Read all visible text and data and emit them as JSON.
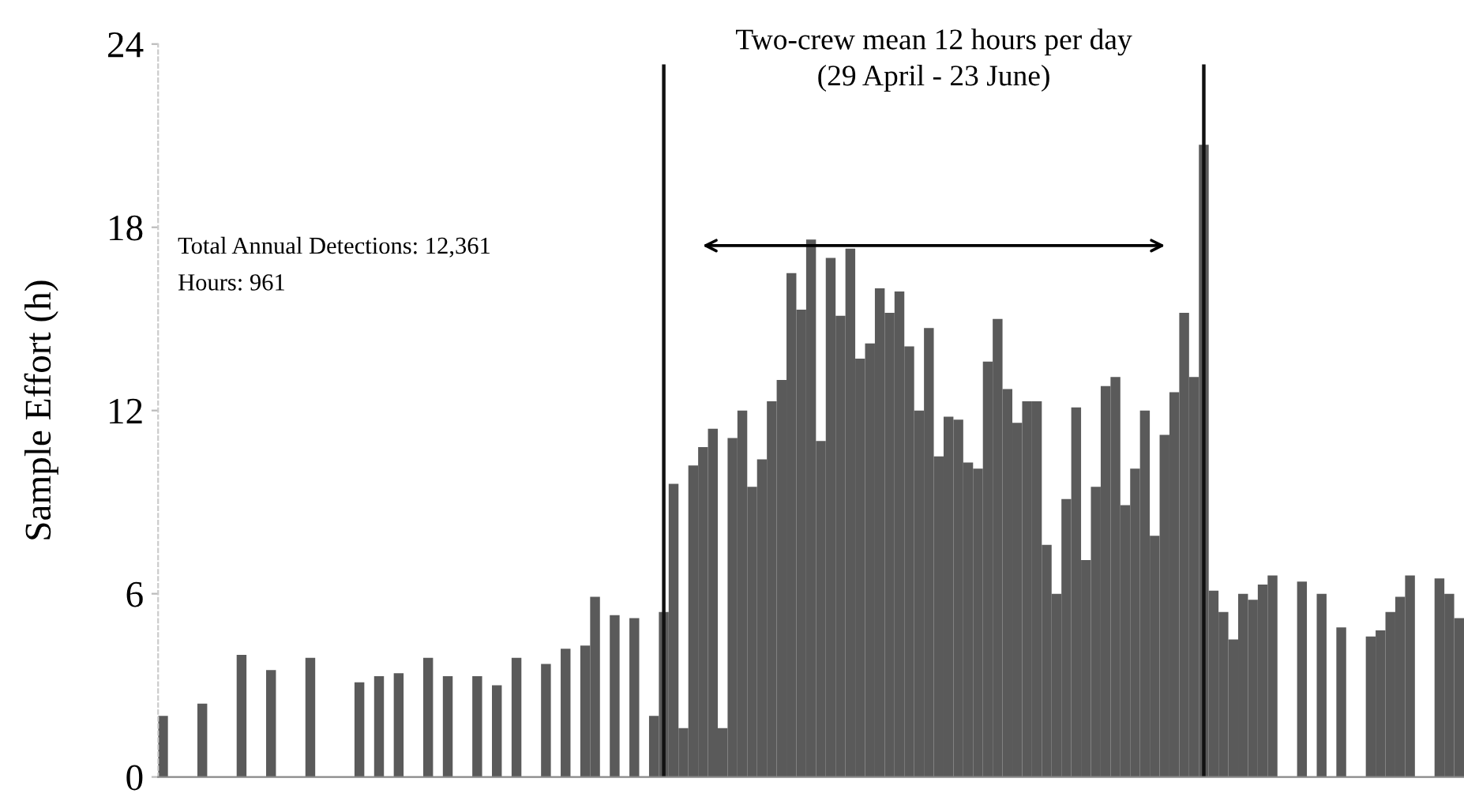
{
  "chart_data": {
    "type": "bar",
    "annotations": [
      "Two-crew mean 12 hours per day\n(29 April - 23 June)",
      "Total Annual Detections: 12,361",
      "Hours: 961"
    ],
    "ylabel": "Sample Effort (h)",
    "categories": [
      null,
      null,
      null,
      null,
      null,
      null,
      null,
      null,
      null,
      null,
      null,
      null,
      null,
      null,
      null,
      null,
      null,
      null,
      null,
      null,
      null,
      null,
      null,
      null,
      null,
      null,
      null,
      null,
      null,
      null,
      null,
      null,
      null,
      null,
      null,
      null,
      null,
      null,
      null,
      null,
      null,
      null,
      null,
      null,
      null,
      null,
      null,
      null,
      null,
      null,
      null,
      null,
      null,
      null,
      null,
      null,
      null,
      null,
      null,
      null,
      null,
      null,
      null,
      null,
      null,
      null,
      null,
      null,
      null,
      null,
      null,
      null,
      null,
      null,
      null,
      null,
      null,
      null,
      null,
      null,
      null,
      null,
      null,
      null,
      null,
      null,
      null,
      null,
      null,
      null,
      null,
      null,
      null,
      null,
      null,
      null,
      null,
      null,
      null,
      null,
      null,
      null,
      null,
      null,
      null,
      null,
      null,
      null,
      null,
      null,
      null,
      null,
      null,
      null,
      null,
      null,
      null,
      null,
      null,
      null,
      null,
      null,
      null,
      null,
      null,
      null,
      null,
      null,
      null,
      null,
      null,
      null,
      null
    ],
    "values": [
      2.0,
      null,
      null,
      null,
      2.4,
      null,
      null,
      null,
      4.0,
      null,
      null,
      3.5,
      null,
      null,
      null,
      3.9,
      null,
      null,
      null,
      null,
      3.1,
      null,
      3.3,
      null,
      3.4,
      null,
      null,
      3.9,
      null,
      3.3,
      null,
      null,
      3.3,
      null,
      3.0,
      null,
      3.9,
      null,
      null,
      3.7,
      null,
      4.2,
      null,
      4.3,
      5.9,
      null,
      5.3,
      null,
      5.2,
      null,
      2.0,
      5.4,
      9.6,
      1.6,
      10.2,
      10.8,
      11.4,
      1.6,
      11.1,
      12.0,
      9.5,
      10.4,
      12.3,
      13.0,
      16.5,
      15.3,
      17.6,
      11.0,
      17.0,
      15.1,
      17.3,
      13.7,
      14.2,
      16.0,
      15.2,
      15.9,
      14.1,
      12.0,
      14.7,
      10.5,
      11.8,
      11.7,
      10.3,
      10.1,
      13.6,
      15.0,
      12.7,
      11.6,
      12.3,
      12.3,
      7.6,
      6.0,
      9.1,
      12.1,
      7.1,
      9.5,
      12.8,
      13.1,
      8.9,
      10.1,
      12.0,
      7.9,
      11.2,
      12.6,
      15.2,
      13.1,
      20.7,
      6.1,
      5.4,
      4.5,
      6.0,
      5.8,
      6.3,
      6.6,
      null,
      null,
      6.4,
      null,
      6.0,
      null,
      4.9,
      null,
      null,
      4.6,
      4.8,
      5.4,
      5.9,
      6.6,
      null,
      null,
      6.5,
      6.0,
      5.2
    ],
    "color": "#5a5a5a",
    "ylim": [
      0,
      24
    ],
    "yticks": [
      0,
      6,
      12,
      18,
      24
    ],
    "grid": false
  }
}
